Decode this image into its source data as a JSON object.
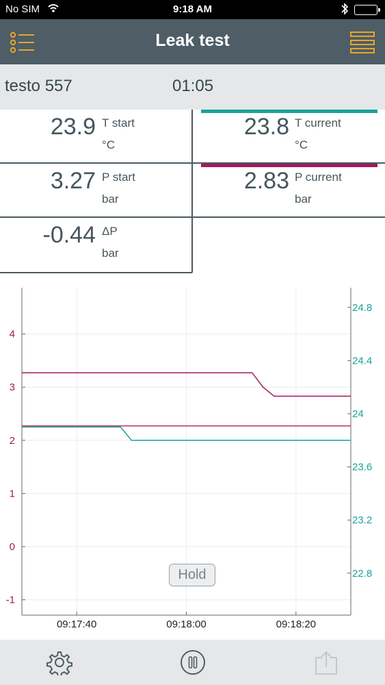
{
  "status_bar": {
    "carrier": "No SIM",
    "time": "9:18 AM"
  },
  "header": {
    "title": "Leak test",
    "left_icon": "list-icon",
    "right_icon": "hamburger-menu-icon",
    "accent_color": "#e8a62a"
  },
  "info_bar": {
    "device": "testo 557",
    "elapsed": "01:05"
  },
  "readings": {
    "t_start": {
      "value": "23.9",
      "label": "T start",
      "unit": "°C"
    },
    "t_current": {
      "value": "23.8",
      "label": "T current",
      "unit": "°C",
      "color": "#17a39a"
    },
    "p_start": {
      "value": "3.27",
      "label": "P start",
      "unit": "bar"
    },
    "p_current": {
      "value": "2.83",
      "label": "P current",
      "unit": "bar",
      "color": "#a0195e"
    },
    "delta_p": {
      "value": "-0.44",
      "label": "ΔP",
      "unit": "bar"
    }
  },
  "chart_data": {
    "type": "line",
    "x_ticks": [
      "09:17:40",
      "09:18:00",
      "09:18:20"
    ],
    "y_left": {
      "ticks": [
        -1,
        0,
        1,
        2,
        3,
        4
      ],
      "color": "#a0195e"
    },
    "y_right": {
      "ticks": [
        22.8,
        23.2,
        23.6,
        24,
        24.4,
        24.8
      ],
      "color": "#17a39a"
    },
    "grid": true,
    "series": [
      {
        "axis": "left",
        "color": "#a0195e",
        "x": [
          "09:17:30",
          "09:18:12",
          "09:18:14",
          "09:18:16",
          "09:18:30"
        ],
        "y": [
          3.27,
          3.27,
          3.0,
          2.83,
          2.83
        ]
      },
      {
        "axis": "left",
        "color": "#c2355a",
        "x": [
          "09:17:30",
          "09:18:30"
        ],
        "y": [
          2.27,
          2.27
        ]
      },
      {
        "axis": "right",
        "color": "#17a39a",
        "x": [
          "09:17:30",
          "09:17:48",
          "09:17:50",
          "09:18:30"
        ],
        "y": [
          23.9,
          23.9,
          23.8,
          23.8
        ]
      }
    ]
  },
  "hold_button": {
    "label": "Hold"
  },
  "toolbar": {
    "settings_icon": "gear-icon",
    "pause_icon": "pause-icon",
    "export_icon": "export-icon"
  }
}
